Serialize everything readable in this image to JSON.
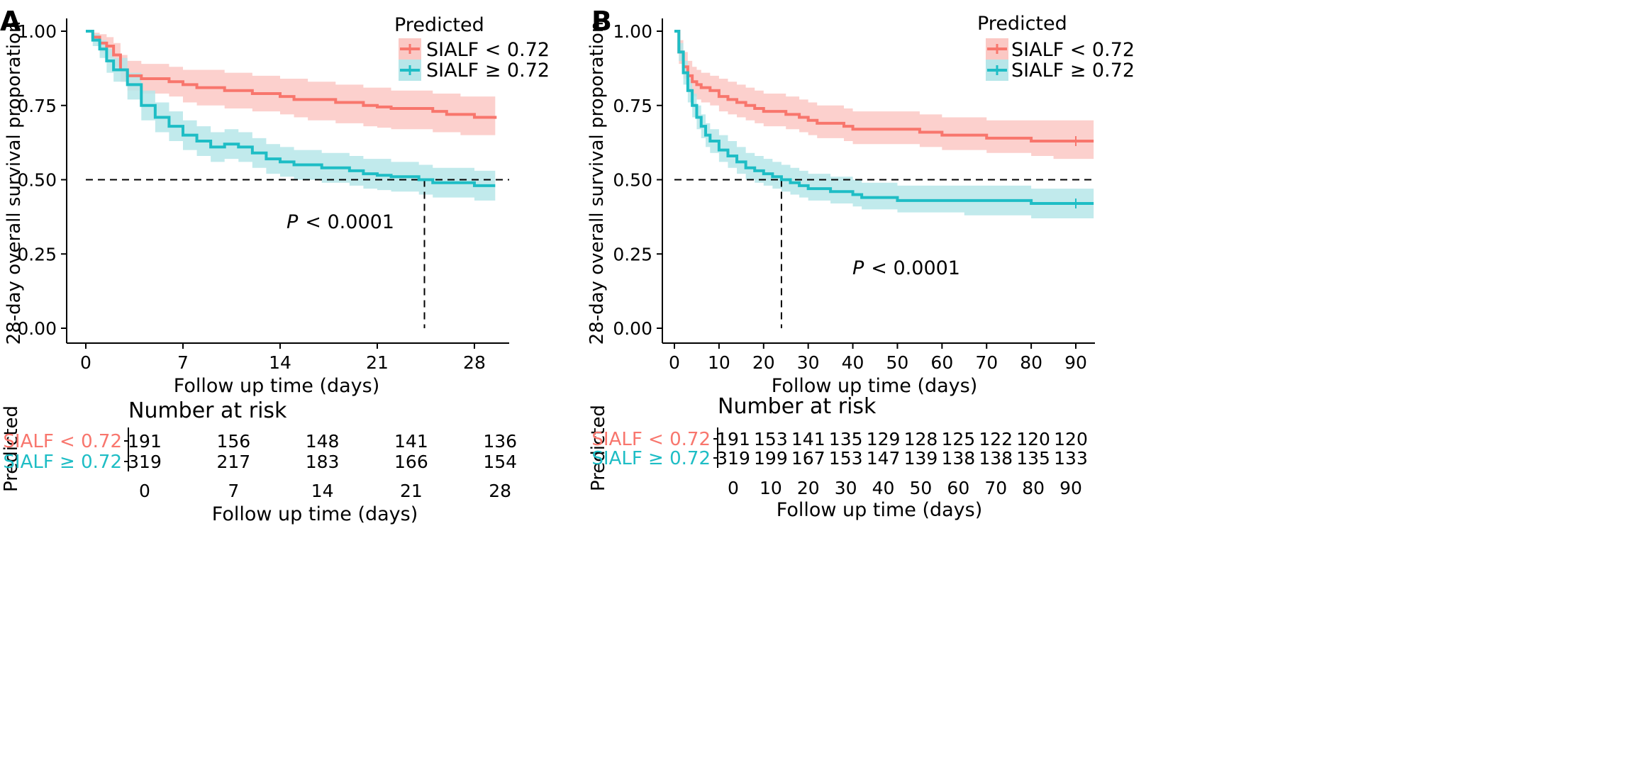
{
  "panels": [
    {
      "label": "A",
      "legend_title": "Predicted",
      "pvalue_prefix": "P",
      "pvalue_text": "< 0.0001",
      "risk_title": "Number at risk",
      "risk_ylabel": "Predicted",
      "risk_xlabel": "Follow up time (days)"
    },
    {
      "label": "B",
      "legend_title": "Predicted",
      "pvalue_prefix": "P",
      "pvalue_text": "< 0.0001",
      "risk_title": "Number at risk",
      "risk_ylabel": "Predicted",
      "risk_xlabel": "Follow up time (days)"
    }
  ],
  "colors": {
    "low": "#F8766D",
    "high": "#1EBDC5",
    "low_band": "#FBC8C4",
    "high_band": "#B6E6E9"
  },
  "chart_data": [
    {
      "type": "line",
      "panel": "A",
      "xlabel": "Follow up time (days)",
      "ylabel": "28-day overall survival proporation",
      "xlim": [
        -1,
        29.5
      ],
      "ylim": [
        0,
        1
      ],
      "xticks": [
        0,
        7,
        14,
        21,
        28
      ],
      "yticks": [
        0,
        0.25,
        0.5,
        0.75,
        1.0
      ],
      "ytick_labels": [
        "0.00",
        "0.25",
        "0.50",
        "0.75",
        "1.00"
      ],
      "legend_position": "top-right",
      "median_line": {
        "y": 0.5,
        "x": 24.4
      },
      "series": [
        {
          "name": "SIALF < 0.72",
          "color": "#F8766D",
          "x": [
            0,
            0.5,
            1,
            1.5,
            2,
            2.5,
            3,
            4,
            5,
            6,
            7,
            8,
            10,
            12,
            14,
            15,
            16,
            18,
            20,
            21,
            22,
            24,
            25,
            26,
            27,
            28,
            29.5
          ],
          "y": [
            1.0,
            0.98,
            0.96,
            0.95,
            0.92,
            0.87,
            0.85,
            0.84,
            0.84,
            0.83,
            0.82,
            0.81,
            0.8,
            0.79,
            0.78,
            0.77,
            0.77,
            0.76,
            0.75,
            0.745,
            0.74,
            0.74,
            0.73,
            0.72,
            0.72,
            0.71,
            0.705
          ],
          "lower": [
            1.0,
            0.965,
            0.93,
            0.91,
            0.88,
            0.83,
            0.8,
            0.79,
            0.79,
            0.78,
            0.76,
            0.75,
            0.74,
            0.73,
            0.72,
            0.71,
            0.7,
            0.69,
            0.68,
            0.675,
            0.67,
            0.67,
            0.66,
            0.66,
            0.65,
            0.65,
            0.645
          ],
          "upper": [
            1.0,
            0.995,
            0.99,
            0.98,
            0.96,
            0.92,
            0.9,
            0.89,
            0.89,
            0.88,
            0.87,
            0.87,
            0.86,
            0.85,
            0.84,
            0.84,
            0.83,
            0.82,
            0.81,
            0.81,
            0.8,
            0.8,
            0.79,
            0.79,
            0.78,
            0.78,
            0.77
          ]
        },
        {
          "name": "SIALF ≥ 0.72",
          "color": "#1EBDC5",
          "x": [
            0,
            0.5,
            1,
            1.5,
            2,
            3,
            4,
            5,
            6,
            7,
            8,
            9,
            10,
            11,
            12,
            13,
            14,
            15,
            16,
            17,
            18,
            19,
            20,
            21,
            22,
            23,
            24,
            25,
            26,
            28,
            29.5
          ],
          "y": [
            1.0,
            0.97,
            0.94,
            0.9,
            0.87,
            0.82,
            0.75,
            0.71,
            0.68,
            0.65,
            0.63,
            0.61,
            0.62,
            0.61,
            0.59,
            0.57,
            0.56,
            0.55,
            0.55,
            0.54,
            0.54,
            0.53,
            0.52,
            0.515,
            0.51,
            0.51,
            0.5,
            0.49,
            0.49,
            0.48,
            0.48
          ],
          "lower": [
            1.0,
            0.95,
            0.91,
            0.86,
            0.83,
            0.77,
            0.7,
            0.66,
            0.63,
            0.6,
            0.58,
            0.56,
            0.57,
            0.56,
            0.54,
            0.52,
            0.51,
            0.5,
            0.5,
            0.49,
            0.49,
            0.48,
            0.47,
            0.465,
            0.46,
            0.46,
            0.45,
            0.44,
            0.44,
            0.43,
            0.43
          ],
          "upper": [
            1.0,
            0.99,
            0.97,
            0.94,
            0.91,
            0.86,
            0.8,
            0.76,
            0.73,
            0.7,
            0.68,
            0.66,
            0.67,
            0.66,
            0.64,
            0.62,
            0.61,
            0.6,
            0.6,
            0.59,
            0.59,
            0.58,
            0.57,
            0.57,
            0.56,
            0.56,
            0.55,
            0.54,
            0.54,
            0.53,
            0.53
          ]
        }
      ],
      "risk_table": {
        "groups": [
          "SIALF < 0.72",
          "SIALF ≥ 0.72"
        ],
        "times": [
          0,
          7,
          14,
          21,
          28
        ],
        "counts": [
          [
            191,
            156,
            148,
            141,
            136
          ],
          [
            319,
            217,
            183,
            166,
            154
          ]
        ]
      }
    },
    {
      "type": "line",
      "panel": "B",
      "xlabel": "Follow up time (days)",
      "ylabel": "28-day overall survival proporation",
      "xlim": [
        -3,
        94
      ],
      "ylim": [
        0,
        1
      ],
      "xticks": [
        0,
        10,
        20,
        30,
        40,
        50,
        60,
        70,
        80,
        90
      ],
      "yticks": [
        0,
        0.25,
        0.5,
        0.75,
        1.0
      ],
      "ytick_labels": [
        "0.00",
        "0.25",
        "0.50",
        "0.75",
        "1.00"
      ],
      "legend_position": "top-right",
      "median_line": {
        "y": 0.5,
        "x": 24
      },
      "series": [
        {
          "name": "SIALF < 0.72",
          "color": "#F8766D",
          "x": [
            0,
            1,
            2,
            3,
            4,
            5,
            6,
            8,
            10,
            12,
            14,
            16,
            18,
            20,
            22,
            25,
            28,
            30,
            32,
            35,
            38,
            40,
            45,
            50,
            55,
            58,
            60,
            65,
            70,
            75,
            80,
            85,
            90,
            94
          ],
          "y": [
            1.0,
            0.93,
            0.88,
            0.85,
            0.83,
            0.82,
            0.81,
            0.8,
            0.78,
            0.77,
            0.76,
            0.75,
            0.74,
            0.73,
            0.73,
            0.72,
            0.71,
            0.7,
            0.69,
            0.69,
            0.68,
            0.67,
            0.67,
            0.67,
            0.66,
            0.66,
            0.65,
            0.65,
            0.64,
            0.64,
            0.63,
            0.63,
            0.63,
            0.63
          ],
          "lower": [
            1.0,
            0.89,
            0.84,
            0.8,
            0.78,
            0.77,
            0.76,
            0.75,
            0.73,
            0.72,
            0.71,
            0.7,
            0.69,
            0.68,
            0.68,
            0.67,
            0.66,
            0.65,
            0.64,
            0.64,
            0.63,
            0.62,
            0.62,
            0.62,
            0.61,
            0.61,
            0.6,
            0.6,
            0.59,
            0.59,
            0.58,
            0.57,
            0.57,
            0.57
          ],
          "upper": [
            1.0,
            0.97,
            0.93,
            0.9,
            0.88,
            0.87,
            0.86,
            0.85,
            0.84,
            0.83,
            0.82,
            0.81,
            0.8,
            0.79,
            0.79,
            0.78,
            0.77,
            0.76,
            0.75,
            0.75,
            0.74,
            0.73,
            0.73,
            0.73,
            0.72,
            0.72,
            0.71,
            0.71,
            0.7,
            0.7,
            0.7,
            0.7,
            0.7,
            0.7
          ]
        },
        {
          "name": "SIALF ≥ 0.72",
          "color": "#1EBDC5",
          "x": [
            0,
            1,
            2,
            3,
            4,
            5,
            6,
            7,
            8,
            10,
            12,
            14,
            16,
            18,
            20,
            22,
            24,
            26,
            28,
            30,
            35,
            40,
            42,
            45,
            50,
            55,
            60,
            65,
            70,
            75,
            80,
            85,
            90,
            94
          ],
          "y": [
            1.0,
            0.93,
            0.86,
            0.8,
            0.75,
            0.71,
            0.68,
            0.65,
            0.63,
            0.6,
            0.58,
            0.56,
            0.54,
            0.53,
            0.52,
            0.51,
            0.5,
            0.49,
            0.48,
            0.47,
            0.46,
            0.45,
            0.44,
            0.44,
            0.43,
            0.43,
            0.43,
            0.43,
            0.43,
            0.43,
            0.42,
            0.42,
            0.42,
            0.42
          ],
          "lower": [
            1.0,
            0.9,
            0.82,
            0.76,
            0.71,
            0.67,
            0.64,
            0.61,
            0.59,
            0.56,
            0.54,
            0.52,
            0.5,
            0.49,
            0.48,
            0.47,
            0.46,
            0.45,
            0.44,
            0.43,
            0.42,
            0.41,
            0.4,
            0.4,
            0.39,
            0.39,
            0.39,
            0.38,
            0.38,
            0.38,
            0.37,
            0.37,
            0.37,
            0.37
          ],
          "upper": [
            1.0,
            0.96,
            0.9,
            0.84,
            0.79,
            0.75,
            0.72,
            0.69,
            0.67,
            0.65,
            0.63,
            0.61,
            0.59,
            0.58,
            0.57,
            0.56,
            0.55,
            0.54,
            0.53,
            0.52,
            0.51,
            0.5,
            0.49,
            0.49,
            0.48,
            0.48,
            0.48,
            0.48,
            0.48,
            0.48,
            0.47,
            0.47,
            0.47,
            0.47
          ]
        }
      ],
      "risk_table": {
        "groups": [
          "SIALF < 0.72",
          "SIALF ≥ 0.72"
        ],
        "times": [
          0,
          10,
          20,
          30,
          40,
          50,
          60,
          70,
          80,
          90
        ],
        "counts": [
          [
            191,
            153,
            141,
            135,
            129,
            128,
            125,
            122,
            120,
            120
          ],
          [
            319,
            199,
            167,
            153,
            147,
            139,
            138,
            138,
            135,
            133
          ]
        ]
      }
    }
  ]
}
